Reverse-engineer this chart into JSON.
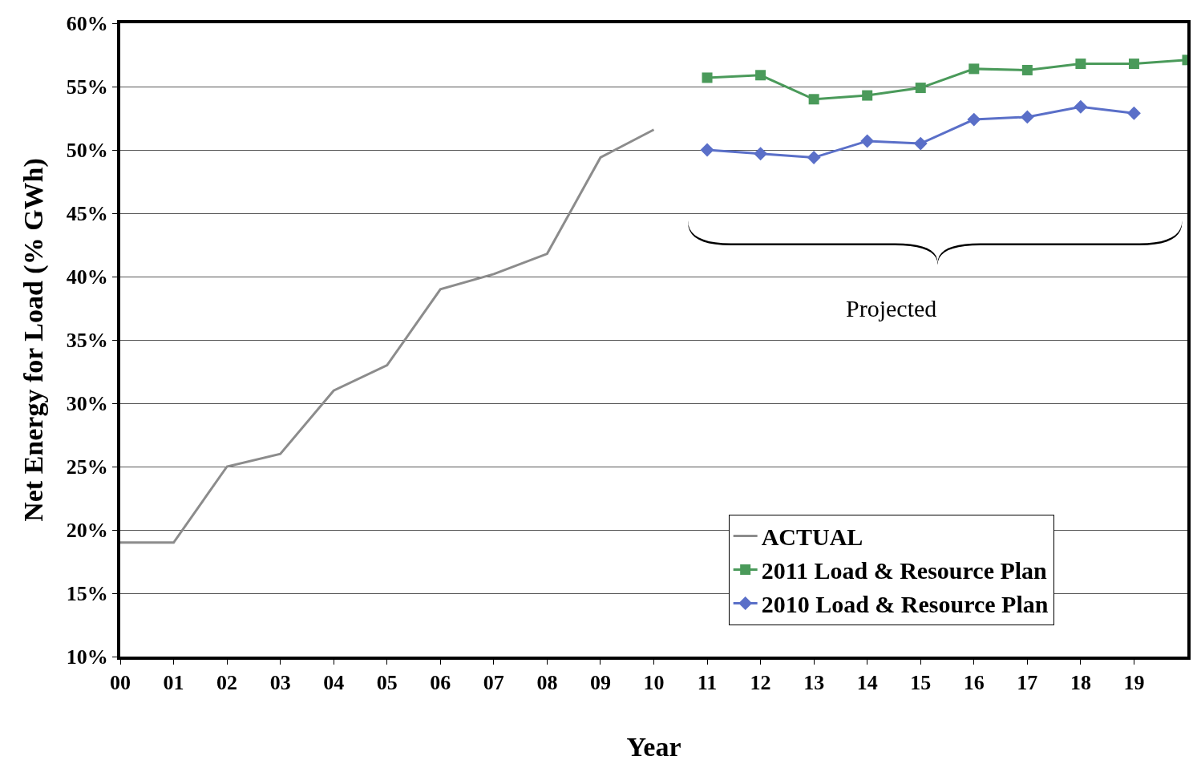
{
  "chart_data": {
    "type": "line",
    "xlabel": "Year",
    "ylabel": "Net Energy for Load (% GWh)",
    "annotations": [
      "Projected"
    ],
    "series": [
      {
        "name": "ACTUAL",
        "color": "#8c8c8c",
        "marker": "none",
        "x": [
          0,
          1,
          2,
          3,
          4,
          5,
          6,
          7,
          8,
          9,
          10
        ],
        "values": [
          19,
          19,
          25,
          26,
          31,
          33,
          39,
          40.2,
          41.8,
          49.4,
          51.6
        ]
      },
      {
        "name": "2011 Load & Resource Plan",
        "color": "#4a9a5a",
        "marker": "square",
        "x": [
          11,
          12,
          13,
          14,
          15,
          16,
          17,
          18,
          19,
          20
        ],
        "values": [
          55.7,
          55.9,
          54.0,
          54.3,
          54.9,
          56.4,
          56.3,
          56.8,
          56.8,
          57.1
        ]
      },
      {
        "name": "2010 Load & Resource Plan",
        "color": "#5a6fc8",
        "marker": "diamond",
        "x": [
          11,
          12,
          13,
          14,
          15,
          16,
          17,
          18,
          19
        ],
        "values": [
          50.0,
          49.7,
          49.4,
          50.7,
          50.5,
          52.4,
          52.6,
          53.4,
          52.9
        ]
      }
    ],
    "xlim": [
      0,
      20
    ],
    "xticks": [
      {
        "value": 0,
        "label": "00"
      },
      {
        "value": 1,
        "label": "01"
      },
      {
        "value": 2,
        "label": "02"
      },
      {
        "value": 3,
        "label": "03"
      },
      {
        "value": 4,
        "label": "04"
      },
      {
        "value": 5,
        "label": "05"
      },
      {
        "value": 6,
        "label": "06"
      },
      {
        "value": 7,
        "label": "07"
      },
      {
        "value": 8,
        "label": "08"
      },
      {
        "value": 9,
        "label": "09"
      },
      {
        "value": 10,
        "label": "10"
      },
      {
        "value": 11,
        "label": "11"
      },
      {
        "value": 12,
        "label": "12"
      },
      {
        "value": 13,
        "label": "13"
      },
      {
        "value": 14,
        "label": "14"
      },
      {
        "value": 15,
        "label": "15"
      },
      {
        "value": 16,
        "label": "16"
      },
      {
        "value": 17,
        "label": "17"
      },
      {
        "value": 18,
        "label": "18"
      },
      {
        "value": 19,
        "label": "19"
      }
    ],
    "ylim": [
      10,
      60
    ],
    "yticks": [
      {
        "value": 10,
        "label": "10%"
      },
      {
        "value": 15,
        "label": "15%"
      },
      {
        "value": 20,
        "label": "20%"
      },
      {
        "value": 25,
        "label": "25%"
      },
      {
        "value": 30,
        "label": "30%"
      },
      {
        "value": 35,
        "label": "35%"
      },
      {
        "value": 40,
        "label": "40%"
      },
      {
        "value": 45,
        "label": "45%"
      },
      {
        "value": 50,
        "label": "50%"
      },
      {
        "value": 55,
        "label": "55%"
      },
      {
        "value": 60,
        "label": "60%"
      }
    ],
    "grid": "y",
    "legend": "bottom right",
    "line_style": "solid"
  }
}
